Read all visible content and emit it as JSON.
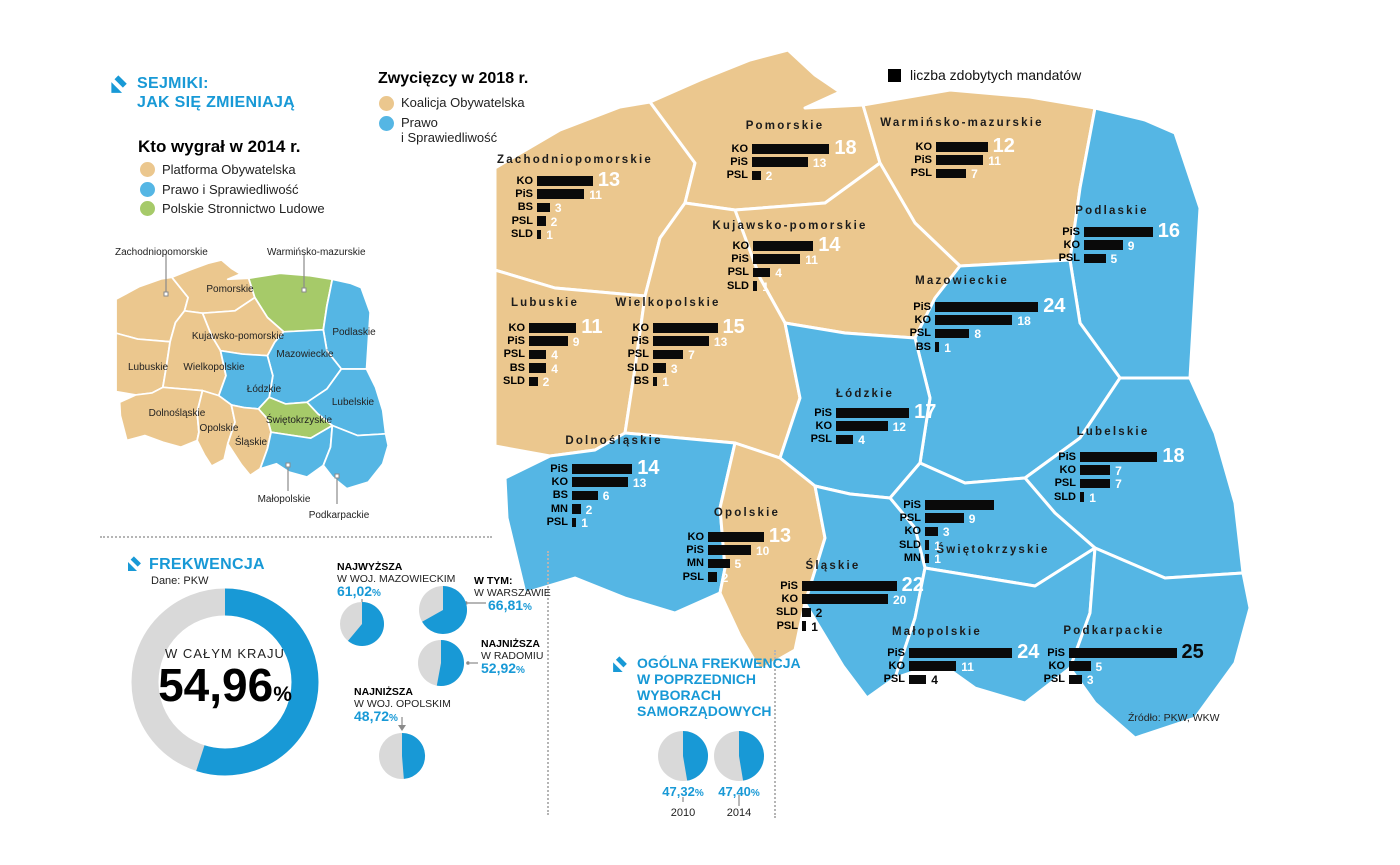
{
  "header": {
    "title_line1": "SEJMIKI:",
    "title_line2": "JAK SIĘ ZMIENIAJĄ"
  },
  "colors": {
    "ko_po": "#ebc78e",
    "pis": "#55b6e4",
    "psl_green": "#a6ca69",
    "accent": "#1899d6",
    "bar": "#0a0a0a",
    "donut_grey": "#d9d9d9"
  },
  "region_names": {
    "zp": "Zachodniopomorskie",
    "pm": "Pomorskie",
    "wm": "Warmińsko-mazurskie",
    "kp": "Kujawsko-pomorskie",
    "pd": "Podlaskie",
    "mz": "Mazowieckie",
    "lbu": "Lubuskie",
    "wp": "Wielkopolskie",
    "ld": "Łódzkie",
    "lu": "Lubelskie",
    "ds": "Dolnośląskie",
    "sw": "Świętokrzyskie",
    "op": "Opolskie",
    "sl": "Śląskie",
    "mp": "Małopolskie",
    "pk": "Podkarpackie"
  },
  "map_2014": {
    "title": "Kto wygrał w 2014 r.",
    "legend": [
      {
        "label": "Platforma Obywatelska",
        "key": "po"
      },
      {
        "label": "Prawo i Sprawiedliwość",
        "key": "pis"
      },
      {
        "label": "Polskie Stronnictwo Ludowe",
        "key": "psl"
      }
    ],
    "winners": {
      "zp": "po",
      "pm": "po",
      "wm": "psl",
      "kp": "po",
      "pd": "pis",
      "mz": "pis",
      "lbu": "po",
      "wp": "po",
      "ld": "pis",
      "lu": "pis",
      "ds": "po",
      "sw": "psl",
      "op": "po",
      "sl": "po",
      "mp": "pis",
      "pk": "pis"
    }
  },
  "map_2018": {
    "legend_title": "Zwycięzcy w 2018 r.",
    "legend": [
      {
        "label_lines": [
          "Koalicja Obywatelska"
        ],
        "key": "ko"
      },
      {
        "label_lines": [
          "Prawo",
          "i Sprawiedliwość"
        ],
        "key": "pis"
      }
    ],
    "mandates_note": "liczba zdobytych mandatów",
    "source": "Źródło: PKW, WKW",
    "regions": [
      {
        "id": "zp",
        "winner": "ko",
        "bars": [
          {
            "party": "KO",
            "seats": 13
          },
          {
            "party": "PiS",
            "seats": 11
          },
          {
            "party": "BS",
            "seats": 3
          },
          {
            "party": "PSL",
            "seats": 2
          },
          {
            "party": "SLD",
            "seats": 1
          }
        ]
      },
      {
        "id": "pm",
        "winner": "ko",
        "bars": [
          {
            "party": "KO",
            "seats": 18
          },
          {
            "party": "PiS",
            "seats": 13
          },
          {
            "party": "PSL",
            "seats": 2
          }
        ]
      },
      {
        "id": "wm",
        "winner": "ko",
        "bars": [
          {
            "party": "KO",
            "seats": 12
          },
          {
            "party": "PiS",
            "seats": 11
          },
          {
            "party": "PSL",
            "seats": 7
          }
        ]
      },
      {
        "id": "kp",
        "winner": "ko",
        "bars": [
          {
            "party": "KO",
            "seats": 14
          },
          {
            "party": "PiS",
            "seats": 11
          },
          {
            "party": "PSL",
            "seats": 4
          },
          {
            "party": "SLD",
            "seats": 1
          }
        ]
      },
      {
        "id": "pd",
        "winner": "pis",
        "bars": [
          {
            "party": "PiS",
            "seats": 16
          },
          {
            "party": "KO",
            "seats": 9
          },
          {
            "party": "PSL",
            "seats": 5
          }
        ]
      },
      {
        "id": "mz",
        "winner": "pis",
        "bars": [
          {
            "party": "PiS",
            "seats": 24
          },
          {
            "party": "KO",
            "seats": 18
          },
          {
            "party": "PSL",
            "seats": 8
          },
          {
            "party": "BS",
            "seats": 1
          }
        ]
      },
      {
        "id": "lbu",
        "winner": "ko",
        "bars": [
          {
            "party": "KO",
            "seats": 11
          },
          {
            "party": "PiS",
            "seats": 9
          },
          {
            "party": "PSL",
            "seats": 4
          },
          {
            "party": "BS",
            "seats": 4
          },
          {
            "party": "SLD",
            "seats": 2
          }
        ]
      },
      {
        "id": "wp",
        "winner": "ko",
        "bars": [
          {
            "party": "KO",
            "seats": 15
          },
          {
            "party": "PiS",
            "seats": 13
          },
          {
            "party": "PSL",
            "seats": 7
          },
          {
            "party": "SLD",
            "seats": 3
          },
          {
            "party": "BS",
            "seats": 1
          }
        ]
      },
      {
        "id": "ld",
        "winner": "pis",
        "bars": [
          {
            "party": "PiS",
            "seats": 17
          },
          {
            "party": "KO",
            "seats": 12
          },
          {
            "party": "PSL",
            "seats": 4
          }
        ]
      },
      {
        "id": "lu",
        "winner": "pis",
        "bars": [
          {
            "party": "PiS",
            "seats": 18
          },
          {
            "party": "KO",
            "seats": 7
          },
          {
            "party": "PSL",
            "seats": 7
          },
          {
            "party": "SLD",
            "seats": 1
          }
        ]
      },
      {
        "id": "ds",
        "winner": "pis",
        "bars": [
          {
            "party": "PiS",
            "seats": 14
          },
          {
            "party": "KO",
            "seats": 13
          },
          {
            "party": "BS",
            "seats": 6
          },
          {
            "party": "MN",
            "seats": 2
          },
          {
            "party": "PSL",
            "seats": 1
          }
        ]
      },
      {
        "id": "op",
        "winner": "ko",
        "bars": [
          {
            "party": "KO",
            "seats": 13
          },
          {
            "party": "PiS",
            "seats": 10
          },
          {
            "party": "MN",
            "seats": 5
          },
          {
            "party": "PSL",
            "seats": 2
          }
        ]
      },
      {
        "id": "sw",
        "winner": "pis",
        "bars": [
          {
            "party": "PiS",
            "seats": 16,
            "value_hidden": true
          },
          {
            "party": "PSL",
            "seats": 9
          },
          {
            "party": "KO",
            "seats": 3
          },
          {
            "party": "SLD",
            "seats": 1
          },
          {
            "party": "MN",
            "seats": 1
          }
        ]
      },
      {
        "id": "sl",
        "winner": "pis",
        "bars": [
          {
            "party": "PiS",
            "seats": 22
          },
          {
            "party": "KO",
            "seats": 20
          },
          {
            "party": "SLD",
            "seats": 2,
            "value_black": true
          },
          {
            "party": "PSL",
            "seats": 1,
            "value_black": true
          }
        ]
      },
      {
        "id": "mp",
        "winner": "pis",
        "bars": [
          {
            "party": "PiS",
            "seats": 24
          },
          {
            "party": "KO",
            "seats": 11
          },
          {
            "party": "PSL",
            "seats": 4,
            "value_black": true
          }
        ]
      },
      {
        "id": "pk",
        "winner": "pis",
        "bars": [
          {
            "party": "PiS",
            "seats": 25,
            "value_black": true
          },
          {
            "party": "KO",
            "seats": 5
          },
          {
            "party": "PSL",
            "seats": 3
          }
        ]
      }
    ]
  },
  "frekwencja": {
    "title": "FREKWENCJA",
    "source": "Dane: PKW",
    "national": {
      "label": "W CAŁYM KRAJU",
      "value": "54,96",
      "unit": "%",
      "pct": 54.96
    },
    "pies": [
      {
        "id": "mazowieckie",
        "lines": [
          "NAJWYŻSZA",
          "W WOJ. MAZOWIECKIM"
        ],
        "value": "61,02",
        "unit": "%",
        "pct": 61.02
      },
      {
        "id": "warszawa",
        "lines": [
          "W TYM:",
          "W WARSZAWIE"
        ],
        "value": "66,81",
        "unit": "%",
        "pct": 66.81
      },
      {
        "id": "radom",
        "lines": [
          "NAJNIŻSZA",
          "W RADOMIU"
        ],
        "value": "52,92",
        "unit": "%",
        "pct": 52.92
      },
      {
        "id": "opolskie",
        "lines": [
          "NAJNIŻSZA",
          "W WOJ. OPOLSKIM"
        ],
        "value": "48,72",
        "unit": "%",
        "pct": 48.72
      }
    ]
  },
  "previous_turnout": {
    "title_lines": [
      "OGÓLNA FREKWENCJA",
      "W POPRZEDNICH",
      "WYBORACH",
      "SAMORZĄDOWYCH"
    ],
    "pies": [
      {
        "year": "2010",
        "value": "47,32",
        "unit": "%",
        "pct": 47.32
      },
      {
        "year": "2014",
        "value": "47,40",
        "unit": "%",
        "pct": 47.4
      }
    ]
  },
  "chart_data": [
    {
      "type": "bar",
      "title": "Zwycięzcy w 2018 r. — liczba zdobytych mandatów",
      "regions": [
        {
          "name": "Zachodniopomorskie",
          "winner": "KO",
          "seats": {
            "KO": 13,
            "PiS": 11,
            "BS": 3,
            "PSL": 2,
            "SLD": 1
          }
        },
        {
          "name": "Pomorskie",
          "winner": "KO",
          "seats": {
            "KO": 18,
            "PiS": 13,
            "PSL": 2
          }
        },
        {
          "name": "Warmińsko-mazurskie",
          "winner": "KO",
          "seats": {
            "KO": 12,
            "PiS": 11,
            "PSL": 7
          }
        },
        {
          "name": "Kujawsko-pomorskie",
          "winner": "KO",
          "seats": {
            "KO": 14,
            "PiS": 11,
            "PSL": 4,
            "SLD": 1
          }
        },
        {
          "name": "Podlaskie",
          "winner": "PiS",
          "seats": {
            "PiS": 16,
            "KO": 9,
            "PSL": 5
          }
        },
        {
          "name": "Mazowieckie",
          "winner": "PiS",
          "seats": {
            "PiS": 24,
            "KO": 18,
            "PSL": 8,
            "BS": 1
          }
        },
        {
          "name": "Lubuskie",
          "winner": "KO",
          "seats": {
            "KO": 11,
            "PiS": 9,
            "PSL": 4,
            "BS": 4,
            "SLD": 2
          }
        },
        {
          "name": "Wielkopolskie",
          "winner": "KO",
          "seats": {
            "KO": 15,
            "PiS": 13,
            "PSL": 7,
            "SLD": 3,
            "BS": 1
          }
        },
        {
          "name": "Łódzkie",
          "winner": "PiS",
          "seats": {
            "PiS": 17,
            "KO": 12,
            "PSL": 4
          }
        },
        {
          "name": "Lubelskie",
          "winner": "PiS",
          "seats": {
            "PiS": 18,
            "KO": 7,
            "PSL": 7,
            "SLD": 1
          }
        },
        {
          "name": "Dolnośląskie",
          "winner": "PiS",
          "seats": {
            "PiS": 14,
            "KO": 13,
            "BS": 6,
            "MN": 2,
            "PSL": 1
          }
        },
        {
          "name": "Opolskie",
          "winner": "KO",
          "seats": {
            "KO": 13,
            "PiS": 10,
            "MN": 5,
            "PSL": 2
          }
        },
        {
          "name": "Świętokrzyskie",
          "winner": "PiS",
          "seats": {
            "PiS": 16,
            "PSL": 9,
            "KO": 3,
            "SLD": 1,
            "MN": 1
          }
        },
        {
          "name": "Śląskie",
          "winner": "PiS",
          "seats": {
            "PiS": 22,
            "KO": 20,
            "SLD": 2,
            "PSL": 1
          }
        },
        {
          "name": "Małopolskie",
          "winner": "PiS",
          "seats": {
            "PiS": 24,
            "KO": 11,
            "PSL": 4
          }
        },
        {
          "name": "Podkarpackie",
          "winner": "PiS",
          "seats": {
            "PiS": 25,
            "KO": 5,
            "PSL": 3
          }
        }
      ]
    },
    {
      "type": "pie",
      "title": "Frekwencja 2018",
      "slices": [
        {
          "label": "W całym kraju",
          "pct": 54.96
        },
        {
          "label": "Najwyższa — woj. mazowieckie",
          "pct": 61.02
        },
        {
          "label": "W tym: w Warszawie",
          "pct": 66.81
        },
        {
          "label": "Najniższa w Radomiu",
          "pct": 52.92
        },
        {
          "label": "Najniższa — woj. opolskie",
          "pct": 48.72
        }
      ]
    },
    {
      "type": "pie",
      "title": "Ogólna frekwencja w poprzednich wyborach samorządowych",
      "slices": [
        {
          "label": "2010",
          "pct": 47.32
        },
        {
          "label": "2014",
          "pct": 47.4
        }
      ]
    }
  ]
}
